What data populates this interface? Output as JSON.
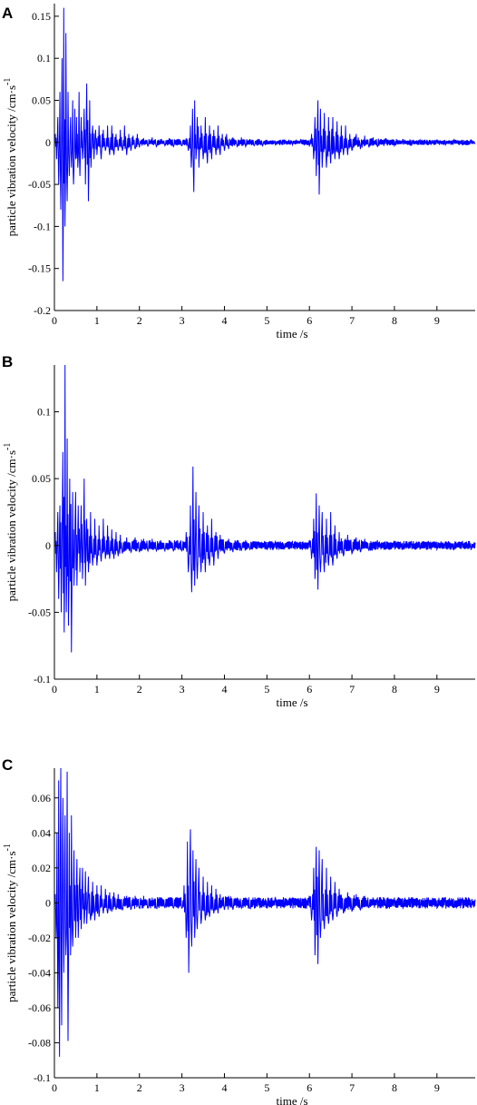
{
  "chart_data": [
    {
      "panel": "A",
      "type": "line",
      "xlabel": "time /s",
      "ylabel": "particle vibration velocity /cm·s",
      "ylabel_sup": "-1",
      "xlim": [
        0,
        9.9
      ],
      "ylim": [
        -0.2,
        0.165
      ],
      "xticks": [
        0,
        1,
        2,
        3,
        4,
        5,
        6,
        7,
        8,
        9
      ],
      "yticks": [
        -0.2,
        -0.15,
        -0.1,
        -0.05,
        0,
        0.05,
        0.1,
        0.15
      ],
      "ytick_labels": [
        "-0.2",
        "-0.15",
        "-0.1",
        "-0.05",
        "0",
        "0.05",
        "0.1",
        "0.15"
      ],
      "color": "#0000ff",
      "series": [
        {
          "x": [
            0.02,
            0.05,
            0.08,
            0.1,
            0.13,
            0.15,
            0.18,
            0.2,
            0.22,
            0.25,
            0.27,
            0.3,
            0.32,
            0.35,
            0.38,
            0.4,
            0.43,
            0.45,
            0.48,
            0.5,
            0.52,
            0.55,
            0.58,
            0.6,
            0.63,
            0.66,
            0.7,
            0.73,
            0.76,
            0.8,
            0.83,
            0.86,
            0.9,
            0.93,
            0.97,
            1.0,
            1.05,
            1.1,
            1.15,
            1.2,
            1.25,
            1.3,
            1.35,
            1.4,
            1.45,
            1.5,
            1.55,
            1.6,
            1.65,
            1.7,
            1.75,
            1.8,
            1.85,
            1.9,
            1.95,
            2.0,
            2.1,
            2.2,
            2.3,
            2.4,
            2.5,
            2.6,
            2.7,
            2.8,
            2.9,
            3.0,
            3.1,
            3.15,
            3.2,
            3.22,
            3.25,
            3.28,
            3.3,
            3.33,
            3.36,
            3.4,
            3.45,
            3.5,
            3.55,
            3.6,
            3.65,
            3.7,
            3.75,
            3.8,
            3.85,
            3.9,
            3.95,
            4.0,
            4.05,
            4.1,
            4.2,
            4.3,
            4.4,
            4.5,
            4.6,
            4.7,
            4.8,
            4.9,
            5.0,
            5.2,
            5.4,
            5.6,
            5.8,
            6.0,
            6.05,
            6.1,
            6.13,
            6.16,
            6.2,
            6.23,
            6.26,
            6.3,
            6.35,
            6.4,
            6.45,
            6.5,
            6.55,
            6.6,
            6.65,
            6.7,
            6.75,
            6.8,
            6.85,
            6.9,
            6.95,
            7.0,
            7.1,
            7.2,
            7.3,
            7.4,
            7.5,
            7.6,
            7.8,
            8.0,
            8.2,
            8.4,
            8.6,
            8.8,
            9.0,
            9.2,
            9.4,
            9.6,
            9.8,
            9.9
          ],
          "y": [
            0.01,
            -0.02,
            0.03,
            -0.05,
            0.06,
            -0.08,
            0.1,
            -0.165,
            0.16,
            -0.1,
            0.13,
            -0.07,
            0.06,
            -0.04,
            0.03,
            -0.03,
            0.05,
            -0.05,
            0.04,
            -0.02,
            0.03,
            -0.03,
            0.06,
            -0.04,
            0.03,
            -0.02,
            0.04,
            -0.05,
            0.07,
            -0.07,
            0.05,
            -0.03,
            0.02,
            -0.02,
            0.015,
            -0.015,
            0.02,
            -0.02,
            0.015,
            -0.01,
            0.02,
            -0.015,
            0.02,
            -0.015,
            0.01,
            -0.01,
            0.015,
            -0.01,
            0.02,
            -0.015,
            0.01,
            -0.01,
            0.008,
            -0.008,
            0.01,
            -0.006,
            0.005,
            -0.005,
            0.006,
            -0.005,
            0.004,
            -0.004,
            0.005,
            -0.005,
            0.004,
            -0.004,
            0.005,
            -0.01,
            0.02,
            -0.03,
            0.04,
            -0.059,
            0.05,
            -0.02,
            0.03,
            -0.03,
            0.02,
            -0.02,
            0.03,
            -0.025,
            0.02,
            -0.02,
            0.015,
            -0.015,
            0.02,
            -0.015,
            0.01,
            -0.01,
            0.01,
            -0.008,
            0.006,
            -0.005,
            0.006,
            -0.005,
            0.004,
            -0.004,
            0.004,
            -0.004,
            0.003,
            -0.003,
            0.003,
            -0.003,
            0.004,
            -0.004,
            0.01,
            -0.02,
            0.03,
            -0.04,
            0.05,
            -0.062,
            0.04,
            -0.03,
            0.035,
            -0.03,
            0.03,
            -0.025,
            0.03,
            -0.02,
            0.025,
            -0.02,
            0.02,
            -0.015,
            0.02,
            -0.015,
            0.01,
            -0.01,
            0.01,
            -0.008,
            0.008,
            -0.006,
            0.006,
            -0.005,
            0.005,
            -0.004,
            0.004,
            -0.004,
            0.003,
            -0.003,
            0.003,
            -0.003,
            0.003,
            -0.003,
            0.003,
            -0.002
          ]
        }
      ]
    },
    {
      "panel": "B",
      "type": "line",
      "xlabel": "time /s",
      "ylabel": "particle vibration velocity /cm·s",
      "ylabel_sup": "-1",
      "xlim": [
        0,
        9.9
      ],
      "ylim": [
        -0.1,
        0.135
      ],
      "xticks": [
        0,
        1,
        2,
        3,
        4,
        5,
        6,
        7,
        8,
        9
      ],
      "yticks": [
        -0.1,
        -0.05,
        0,
        0.05,
        0.1
      ],
      "ytick_labels": [
        "-0.1",
        "-0.05",
        "0",
        "0.05",
        "0.1"
      ],
      "color": "#0000ff",
      "series": [
        {
          "x": [
            0.02,
            0.05,
            0.08,
            0.1,
            0.13,
            0.16,
            0.2,
            0.23,
            0.25,
            0.28,
            0.3,
            0.33,
            0.36,
            0.4,
            0.43,
            0.46,
            0.5,
            0.53,
            0.56,
            0.6,
            0.63,
            0.66,
            0.7,
            0.73,
            0.76,
            0.8,
            0.85,
            0.9,
            0.95,
            1.0,
            1.05,
            1.1,
            1.15,
            1.2,
            1.25,
            1.3,
            1.35,
            1.4,
            1.45,
            1.5,
            1.55,
            1.6,
            1.7,
            1.8,
            1.9,
            2.0,
            2.1,
            2.2,
            2.3,
            2.4,
            2.5,
            2.6,
            2.7,
            2.8,
            2.9,
            3.0,
            3.1,
            3.15,
            3.2,
            3.23,
            3.26,
            3.3,
            3.33,
            3.36,
            3.4,
            3.45,
            3.5,
            3.55,
            3.6,
            3.65,
            3.7,
            3.75,
            3.8,
            3.85,
            3.9,
            4.0,
            4.1,
            4.2,
            4.3,
            4.4,
            4.5,
            4.6,
            4.8,
            5.0,
            5.2,
            5.4,
            5.6,
            5.8,
            6.0,
            6.05,
            6.1,
            6.13,
            6.16,
            6.2,
            6.23,
            6.26,
            6.3,
            6.35,
            6.4,
            6.45,
            6.5,
            6.55,
            6.6,
            6.65,
            6.7,
            6.8,
            6.9,
            7.0,
            7.1,
            7.2,
            7.3,
            7.4,
            7.6,
            7.8,
            8.0,
            8.2,
            8.4,
            8.6,
            8.8,
            9.0,
            9.2,
            9.4,
            9.6,
            9.8,
            9.9
          ],
          "y": [
            0.01,
            -0.02,
            0.025,
            -0.04,
            0.03,
            -0.05,
            0.07,
            -0.065,
            0.135,
            -0.05,
            0.08,
            -0.06,
            0.05,
            -0.08,
            0.04,
            -0.03,
            0.04,
            -0.03,
            0.03,
            -0.02,
            0.03,
            -0.025,
            0.05,
            -0.03,
            0.02,
            -0.02,
            0.025,
            -0.015,
            0.02,
            -0.015,
            0.015,
            -0.012,
            0.02,
            -0.01,
            0.015,
            -0.01,
            0.012,
            -0.01,
            0.01,
            -0.008,
            0.008,
            -0.006,
            0.006,
            -0.005,
            0.006,
            -0.005,
            0.005,
            -0.004,
            0.005,
            -0.004,
            0.004,
            -0.004,
            0.004,
            -0.004,
            0.004,
            -0.004,
            0.01,
            -0.02,
            0.03,
            -0.035,
            0.059,
            -0.03,
            0.04,
            -0.025,
            0.03,
            -0.02,
            0.025,
            -0.02,
            0.015,
            -0.015,
            0.02,
            -0.015,
            0.01,
            -0.01,
            0.008,
            -0.006,
            0.005,
            -0.005,
            0.004,
            -0.004,
            0.004,
            -0.003,
            0.003,
            -0.003,
            0.003,
            -0.003,
            0.003,
            -0.003,
            0.004,
            -0.01,
            0.02,
            -0.025,
            0.039,
            -0.033,
            0.03,
            -0.02,
            0.025,
            -0.02,
            0.02,
            -0.015,
            0.025,
            -0.015,
            0.015,
            -0.01,
            0.01,
            -0.008,
            0.008,
            -0.006,
            0.006,
            -0.005,
            0.005,
            -0.004,
            0.004,
            -0.003,
            0.003,
            -0.003,
            0.003,
            -0.003,
            0.003,
            -0.003,
            0.003,
            -0.003,
            0.003,
            -0.003,
            0.002
          ]
        }
      ]
    },
    {
      "panel": "C",
      "type": "line",
      "xlabel": "time /s",
      "ylabel": "particle vibration velocity /cm·s",
      "ylabel_sup": "-1",
      "xlim": [
        0,
        9.9
      ],
      "ylim": [
        -0.1,
        0.077
      ],
      "xticks": [
        0,
        1,
        2,
        3,
        4,
        5,
        6,
        7,
        8,
        9
      ],
      "yticks": [
        -0.1,
        -0.08,
        -0.06,
        -0.04,
        -0.02,
        0,
        0.02,
        0.04,
        0.06
      ],
      "ytick_labels": [
        "-0.1",
        "-0.08",
        "-0.06",
        "-0.04",
        "-0.02",
        "0",
        "0.02",
        "0.04",
        "0.06"
      ],
      "color": "#0000ff",
      "series": [
        {
          "x": [
            0.02,
            0.04,
            0.06,
            0.08,
            0.1,
            0.12,
            0.15,
            0.17,
            0.2,
            0.22,
            0.25,
            0.27,
            0.3,
            0.32,
            0.35,
            0.38,
            0.4,
            0.43,
            0.46,
            0.5,
            0.53,
            0.56,
            0.6,
            0.63,
            0.66,
            0.7,
            0.73,
            0.76,
            0.8,
            0.85,
            0.9,
            0.95,
            1.0,
            1.05,
            1.1,
            1.15,
            1.2,
            1.25,
            1.3,
            1.35,
            1.4,
            1.45,
            1.5,
            1.6,
            1.7,
            1.8,
            1.9,
            2.0,
            2.1,
            2.2,
            2.3,
            2.4,
            2.5,
            2.6,
            2.7,
            2.8,
            2.9,
            3.0,
            3.05,
            3.1,
            3.13,
            3.16,
            3.2,
            3.23,
            3.26,
            3.3,
            3.33,
            3.36,
            3.4,
            3.45,
            3.5,
            3.55,
            3.6,
            3.65,
            3.7,
            3.75,
            3.8,
            3.85,
            3.9,
            4.0,
            4.1,
            4.2,
            4.3,
            4.4,
            4.5,
            4.6,
            4.8,
            5.0,
            5.2,
            5.4,
            5.6,
            5.8,
            6.0,
            6.05,
            6.1,
            6.13,
            6.16,
            6.2,
            6.23,
            6.26,
            6.3,
            6.35,
            6.4,
            6.45,
            6.5,
            6.55,
            6.6,
            6.65,
            6.7,
            6.8,
            6.9,
            7.0,
            7.1,
            7.2,
            7.3,
            7.4,
            7.6,
            7.8,
            8.0,
            8.2,
            8.4,
            8.6,
            8.8,
            9.0,
            9.2,
            9.4,
            9.6,
            9.8,
            9.9
          ],
          "y": [
            0.005,
            -0.02,
            0.04,
            -0.06,
            0.07,
            -0.088,
            0.077,
            -0.07,
            0.06,
            -0.04,
            0.05,
            -0.03,
            0.075,
            -0.079,
            0.04,
            -0.03,
            0.05,
            -0.025,
            0.03,
            -0.02,
            0.025,
            -0.02,
            0.02,
            -0.015,
            0.02,
            -0.012,
            0.018,
            -0.012,
            0.015,
            -0.01,
            0.012,
            -0.01,
            0.01,
            -0.008,
            0.01,
            -0.006,
            0.008,
            -0.006,
            0.006,
            -0.005,
            0.006,
            -0.004,
            0.005,
            -0.004,
            0.004,
            -0.004,
            0.004,
            -0.003,
            0.004,
            -0.003,
            0.003,
            -0.003,
            0.003,
            -0.003,
            0.003,
            -0.003,
            0.003,
            -0.003,
            0.01,
            -0.02,
            0.035,
            -0.04,
            0.042,
            -0.025,
            0.03,
            -0.02,
            0.025,
            -0.015,
            0.02,
            -0.012,
            0.015,
            -0.01,
            0.012,
            -0.008,
            0.01,
            -0.006,
            0.008,
            -0.006,
            0.005,
            -0.004,
            0.004,
            -0.004,
            0.003,
            -0.003,
            0.003,
            -0.003,
            0.003,
            -0.003,
            0.003,
            -0.003,
            0.003,
            -0.003,
            0.004,
            -0.01,
            0.02,
            -0.03,
            0.032,
            -0.035,
            0.03,
            -0.02,
            0.025,
            -0.015,
            0.02,
            -0.012,
            0.015,
            -0.01,
            0.012,
            -0.008,
            0.008,
            -0.006,
            0.006,
            -0.005,
            0.005,
            -0.004,
            0.004,
            -0.003,
            0.003,
            -0.003,
            0.003,
            -0.003,
            0.003,
            -0.003,
            0.003,
            -0.003,
            0.003,
            -0.003,
            0.003,
            -0.003,
            0.002
          ]
        }
      ]
    }
  ]
}
